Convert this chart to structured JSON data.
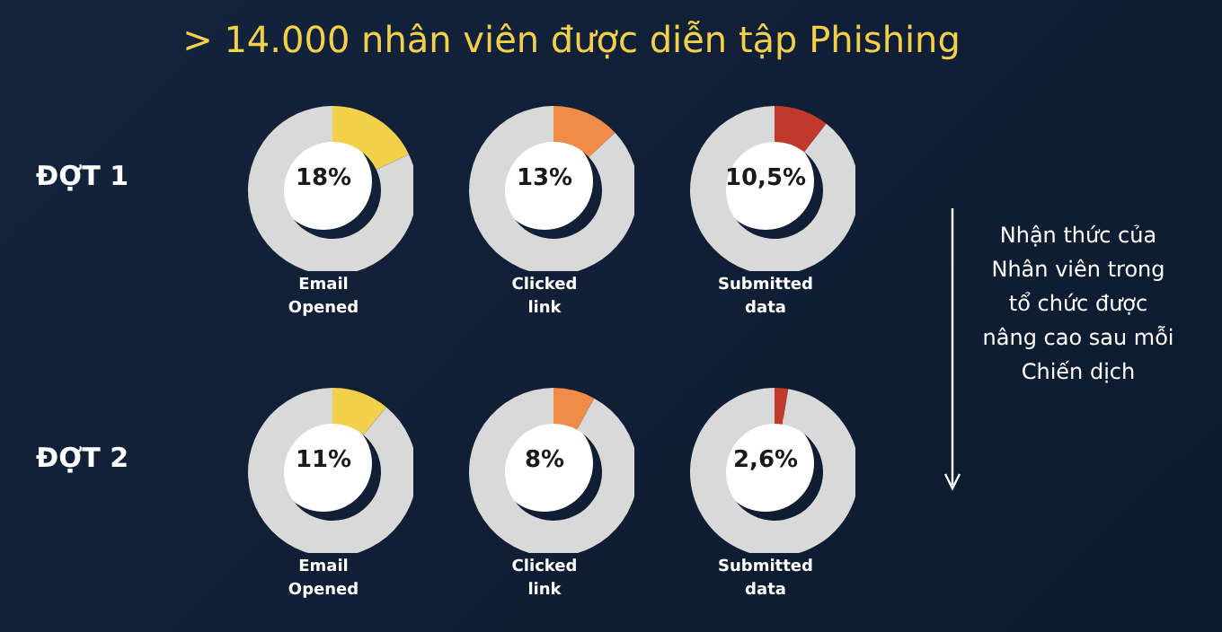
{
  "chart_data": [
    {
      "type": "donut",
      "title": "> 14.000 nhân viên được diễn tập Phishing",
      "ylabel": "ĐỢT 1",
      "xlabel": "Email Opened",
      "categories": [
        null,
        null
      ],
      "values": [
        18,
        82
      ],
      "colors": [
        "#f2d04a",
        "#d9d9d9"
      ],
      "annotations": [
        "18%"
      ]
    },
    {
      "type": "donut",
      "xlabel": "Clicked link",
      "categories": [
        null,
        null
      ],
      "values": [
        13,
        87
      ],
      "colors": [
        "#f08c48",
        "#d9d9d9"
      ],
      "annotations": [
        "13%"
      ]
    },
    {
      "type": "donut",
      "xlabel": "Submitted data",
      "categories": [
        null,
        null
      ],
      "values": [
        10.5,
        89.5
      ],
      "colors": [
        "#c0392b",
        "#d9d9d9"
      ],
      "annotations": [
        "10,5%"
      ]
    },
    {
      "type": "donut",
      "ylabel": "ĐỢT 2",
      "xlabel": "Email Opened",
      "categories": [
        null,
        null
      ],
      "values": [
        11,
        89
      ],
      "colors": [
        "#f2d04a",
        "#d9d9d9"
      ],
      "annotations": [
        "11%"
      ]
    },
    {
      "type": "donut",
      "xlabel": "Clicked link",
      "categories": [
        null,
        null
      ],
      "values": [
        8,
        92
      ],
      "colors": [
        "#f08c48",
        "#d9d9d9"
      ],
      "annotations": [
        "8%"
      ]
    },
    {
      "type": "donut",
      "xlabel": "Submitted data",
      "categories": [
        null,
        null
      ],
      "values": [
        2.6,
        97.4
      ],
      "colors": [
        "#c0392b",
        "#d9d9d9"
      ],
      "annotations": [
        "2,6%"
      ]
    },
    {
      "type": "other",
      "annotations": [
        "Nhận thức của Nhân viên trong tổ chức được nâng cao sau mỗi Chiến dịch"
      ]
    }
  ]
}
